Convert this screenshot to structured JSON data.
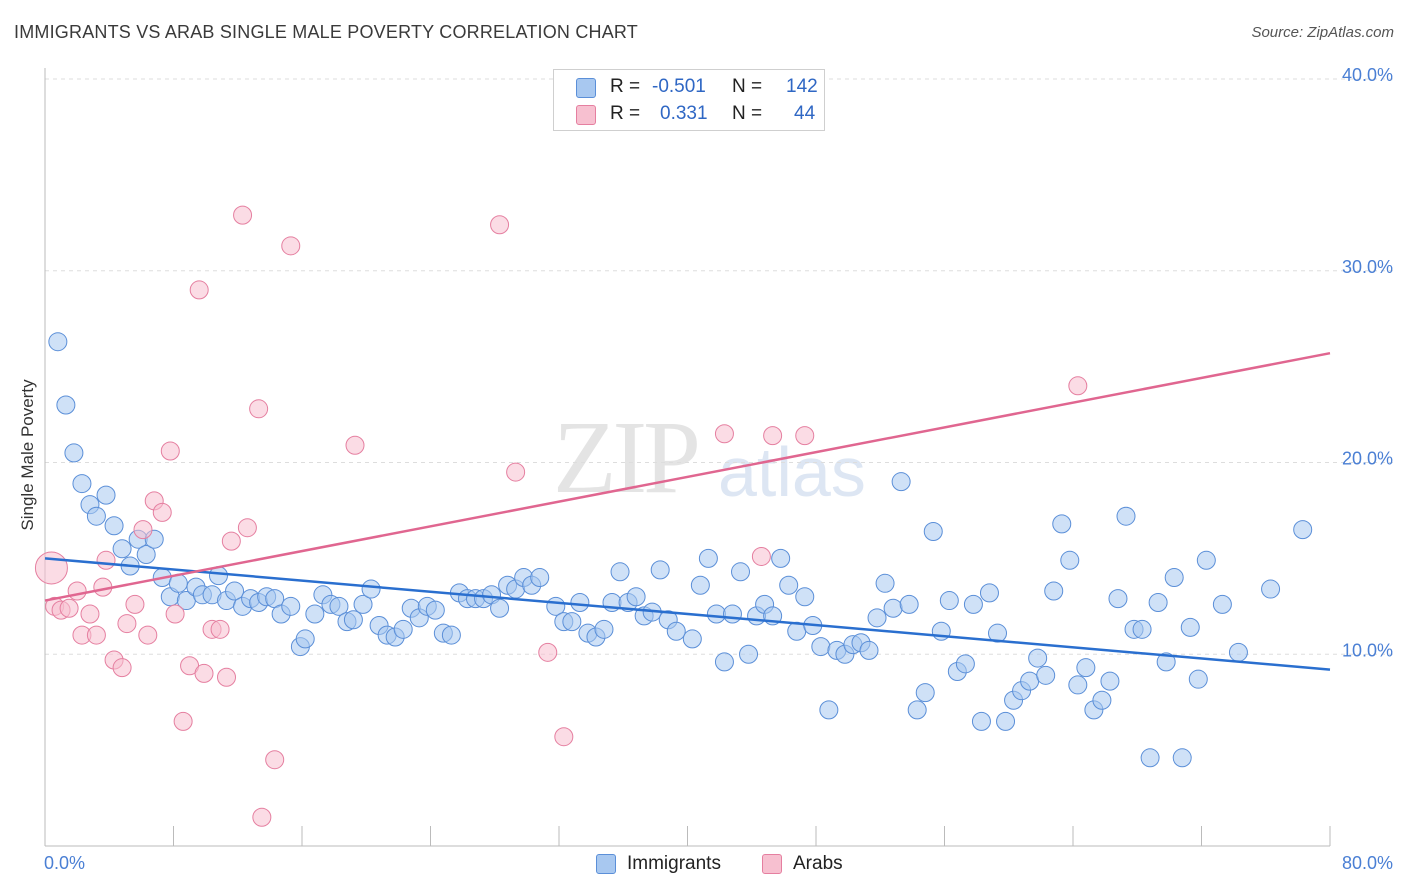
{
  "title": "IMMIGRANTS VS ARAB SINGLE MALE POVERTY CORRELATION CHART",
  "source": "Source: ZipAtlas.com",
  "watermark": {
    "zip": "ZIP",
    "atlas": "atlas"
  },
  "legend": {
    "r_label": "R =",
    "n_label": "N =",
    "rows": [
      {
        "name": "Immigrants",
        "r": "-0.501",
        "n": "142",
        "color": "#a8c8f0",
        "border": "#5b8fd8"
      },
      {
        "name": "Arabs",
        "r": "0.331",
        "n": "44",
        "color": "#f7c0d0",
        "border": "#e57fa0"
      }
    ]
  },
  "bottom_legend": [
    {
      "label": "Immigrants",
      "color": "#a8c8f0",
      "border": "#5b8fd8"
    },
    {
      "label": "Arabs",
      "color": "#f7c0d0",
      "border": "#e57fa0"
    }
  ],
  "chart_data": {
    "type": "scatter",
    "title": "IMMIGRANTS VS ARAB SINGLE MALE POVERTY CORRELATION CHART",
    "xlabel": "",
    "ylabel": "Single Male Poverty",
    "xlim": [
      0,
      80
    ],
    "ylim": [
      0,
      40
    ],
    "x_tick_labels": [
      "0.0%",
      "80.0%"
    ],
    "y_ticks": [
      10,
      20,
      30,
      40
    ],
    "y_tick_labels": [
      "10.0%",
      "20.0%",
      "30.0%",
      "40.0%"
    ],
    "grid": "horizontal dashed",
    "legend_position": "top-center",
    "series": [
      {
        "name": "Immigrants",
        "color": "#a8c8f0",
        "edge": "#5b8fd8",
        "line_color": "#2a6fcf",
        "trend": [
          [
            0,
            15.0
          ],
          [
            80,
            9.2
          ]
        ],
        "points": [
          [
            0.8,
            26.3
          ],
          [
            1.3,
            23.0
          ],
          [
            1.8,
            20.5
          ],
          [
            2.3,
            18.9
          ],
          [
            2.8,
            17.8
          ],
          [
            3.2,
            17.2
          ],
          [
            3.8,
            18.3
          ],
          [
            4.3,
            16.7
          ],
          [
            4.8,
            15.5
          ],
          [
            5.3,
            14.6
          ],
          [
            5.8,
            16.0
          ],
          [
            6.3,
            15.2
          ],
          [
            6.8,
            16.0
          ],
          [
            7.3,
            14.0
          ],
          [
            7.8,
            13.0
          ],
          [
            8.3,
            13.7
          ],
          [
            8.8,
            12.8
          ],
          [
            9.4,
            13.5
          ],
          [
            9.8,
            13.1
          ],
          [
            10.4,
            13.1
          ],
          [
            10.8,
            14.1
          ],
          [
            11.3,
            12.8
          ],
          [
            11.8,
            13.3
          ],
          [
            12.3,
            12.5
          ],
          [
            12.8,
            12.9
          ],
          [
            13.3,
            12.7
          ],
          [
            13.8,
            13.0
          ],
          [
            14.3,
            12.9
          ],
          [
            14.7,
            12.1
          ],
          [
            15.3,
            12.5
          ],
          [
            15.9,
            10.4
          ],
          [
            16.2,
            10.8
          ],
          [
            16.8,
            12.1
          ],
          [
            17.3,
            13.1
          ],
          [
            17.8,
            12.6
          ],
          [
            18.3,
            12.5
          ],
          [
            18.8,
            11.7
          ],
          [
            19.2,
            11.8
          ],
          [
            19.8,
            12.6
          ],
          [
            20.3,
            13.4
          ],
          [
            20.8,
            11.5
          ],
          [
            21.3,
            11.0
          ],
          [
            21.8,
            10.9
          ],
          [
            22.3,
            11.3
          ],
          [
            22.8,
            12.4
          ],
          [
            23.3,
            11.9
          ],
          [
            23.8,
            12.5
          ],
          [
            24.3,
            12.3
          ],
          [
            24.8,
            11.1
          ],
          [
            25.3,
            11.0
          ],
          [
            25.8,
            13.2
          ],
          [
            26.3,
            12.9
          ],
          [
            26.8,
            12.9
          ],
          [
            27.3,
            12.9
          ],
          [
            27.8,
            13.1
          ],
          [
            28.3,
            12.4
          ],
          [
            28.8,
            13.6
          ],
          [
            29.3,
            13.4
          ],
          [
            29.8,
            14.0
          ],
          [
            30.3,
            13.6
          ],
          [
            30.8,
            14.0
          ],
          [
            31.8,
            12.5
          ],
          [
            32.3,
            11.7
          ],
          [
            32.8,
            11.7
          ],
          [
            33.3,
            12.7
          ],
          [
            33.8,
            11.1
          ],
          [
            34.3,
            10.9
          ],
          [
            34.8,
            11.3
          ],
          [
            35.3,
            12.7
          ],
          [
            35.8,
            14.3
          ],
          [
            36.3,
            12.7
          ],
          [
            36.8,
            13.0
          ],
          [
            37.3,
            12.0
          ],
          [
            37.8,
            12.2
          ],
          [
            38.3,
            14.4
          ],
          [
            38.8,
            11.8
          ],
          [
            39.3,
            11.2
          ],
          [
            40.3,
            10.8
          ],
          [
            40.8,
            13.6
          ],
          [
            41.3,
            15.0
          ],
          [
            41.8,
            12.1
          ],
          [
            42.3,
            9.6
          ],
          [
            42.8,
            12.1
          ],
          [
            43.3,
            14.3
          ],
          [
            43.8,
            10.0
          ],
          [
            44.3,
            12.0
          ],
          [
            44.8,
            12.6
          ],
          [
            45.3,
            12.0
          ],
          [
            45.8,
            15.0
          ],
          [
            46.3,
            13.6
          ],
          [
            46.8,
            11.2
          ],
          [
            47.3,
            13.0
          ],
          [
            47.8,
            11.5
          ],
          [
            48.3,
            10.4
          ],
          [
            48.8,
            7.1
          ],
          [
            49.3,
            10.2
          ],
          [
            49.8,
            10.0
          ],
          [
            50.3,
            10.5
          ],
          [
            50.8,
            10.6
          ],
          [
            51.3,
            10.2
          ],
          [
            51.8,
            11.9
          ],
          [
            52.3,
            13.7
          ],
          [
            52.8,
            12.4
          ],
          [
            53.3,
            19.0
          ],
          [
            53.8,
            12.6
          ],
          [
            54.3,
            7.1
          ],
          [
            54.8,
            8.0
          ],
          [
            55.3,
            16.4
          ],
          [
            55.8,
            11.2
          ],
          [
            56.3,
            12.8
          ],
          [
            56.8,
            9.1
          ],
          [
            57.3,
            9.5
          ],
          [
            57.8,
            12.6
          ],
          [
            58.3,
            6.5
          ],
          [
            58.8,
            13.2
          ],
          [
            59.3,
            11.1
          ],
          [
            59.8,
            6.5
          ],
          [
            60.3,
            7.6
          ],
          [
            60.8,
            8.1
          ],
          [
            61.3,
            8.6
          ],
          [
            61.8,
            9.8
          ],
          [
            62.3,
            8.9
          ],
          [
            62.8,
            13.3
          ],
          [
            63.3,
            16.8
          ],
          [
            63.8,
            14.9
          ],
          [
            64.3,
            8.4
          ],
          [
            64.8,
            9.3
          ],
          [
            65.3,
            7.1
          ],
          [
            65.8,
            7.6
          ],
          [
            66.3,
            8.6
          ],
          [
            66.8,
            12.9
          ],
          [
            67.3,
            17.2
          ],
          [
            67.8,
            11.3
          ],
          [
            68.3,
            11.3
          ],
          [
            68.8,
            4.6
          ],
          [
            69.3,
            12.7
          ],
          [
            69.8,
            9.6
          ],
          [
            70.3,
            14.0
          ],
          [
            70.8,
            4.6
          ],
          [
            71.3,
            11.4
          ],
          [
            71.8,
            8.7
          ],
          [
            72.3,
            14.9
          ],
          [
            73.3,
            12.6
          ],
          [
            74.3,
            10.1
          ],
          [
            76.3,
            13.4
          ],
          [
            78.3,
            16.5
          ]
        ]
      },
      {
        "name": "Arabs",
        "color": "#f7c0d0",
        "edge": "#e57fa0",
        "line_color": "#e06690",
        "trend": [
          [
            0,
            12.8
          ],
          [
            80,
            25.7
          ]
        ],
        "points": [
          [
            0.4,
            14.5
          ],
          [
            0.6,
            12.5
          ],
          [
            1.0,
            12.3
          ],
          [
            1.5,
            12.4
          ],
          [
            2.0,
            13.3
          ],
          [
            2.3,
            11.0
          ],
          [
            2.8,
            12.1
          ],
          [
            3.2,
            11.0
          ],
          [
            3.6,
            13.5
          ],
          [
            3.8,
            14.9
          ],
          [
            4.3,
            9.7
          ],
          [
            4.8,
            9.3
          ],
          [
            5.1,
            11.6
          ],
          [
            5.6,
            12.6
          ],
          [
            6.1,
            16.5
          ],
          [
            6.4,
            11.0
          ],
          [
            6.8,
            18.0
          ],
          [
            7.3,
            17.4
          ],
          [
            7.8,
            20.6
          ],
          [
            8.1,
            12.1
          ],
          [
            8.6,
            6.5
          ],
          [
            9.0,
            9.4
          ],
          [
            9.6,
            29.0
          ],
          [
            9.9,
            9.0
          ],
          [
            10.4,
            11.3
          ],
          [
            10.9,
            11.3
          ],
          [
            11.3,
            8.8
          ],
          [
            11.6,
            15.9
          ],
          [
            12.3,
            32.9
          ],
          [
            12.6,
            16.6
          ],
          [
            13.3,
            22.8
          ],
          [
            13.5,
            1.5
          ],
          [
            14.3,
            4.5
          ],
          [
            15.3,
            31.3
          ],
          [
            19.3,
            20.9
          ],
          [
            28.3,
            32.4
          ],
          [
            29.3,
            19.5
          ],
          [
            31.3,
            10.1
          ],
          [
            32.3,
            5.7
          ],
          [
            42.3,
            21.5
          ],
          [
            44.6,
            15.1
          ],
          [
            45.3,
            21.4
          ],
          [
            47.3,
            21.4
          ],
          [
            64.3,
            24.0
          ]
        ]
      }
    ]
  }
}
